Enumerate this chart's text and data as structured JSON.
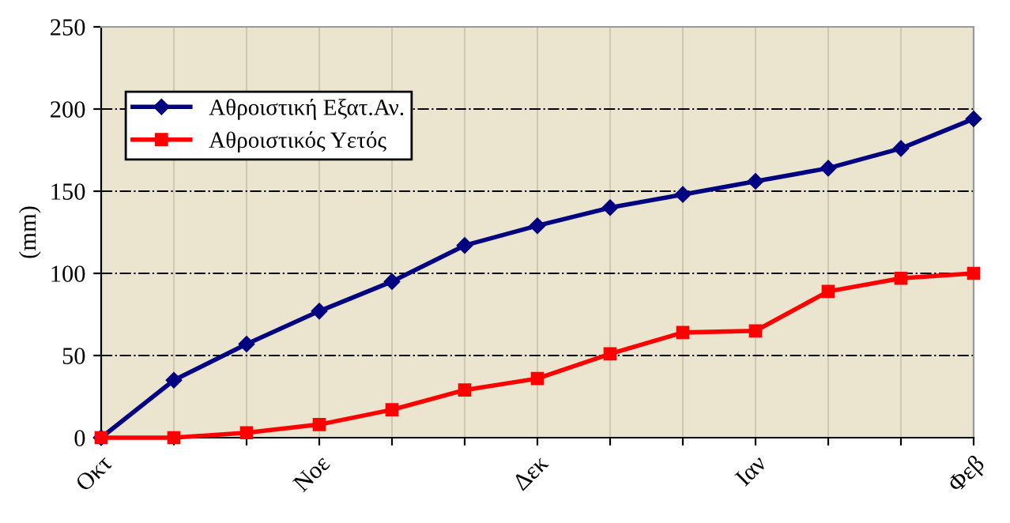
{
  "chart_data": {
    "type": "line",
    "ylabel": "(mm)",
    "categories": [
      "Οκτ",
      null,
      null,
      "Νοε",
      null,
      null,
      "Δεκ",
      null,
      null,
      "Ιαν",
      null,
      null,
      "Φεβ"
    ],
    "series": [
      {
        "name": "Αθροιστική Εξατ.Αν.",
        "color": "#000080",
        "marker": "diamond",
        "values": [
          0,
          35,
          57,
          77,
          95,
          117,
          129,
          140,
          148,
          156,
          164,
          176,
          194
        ]
      },
      {
        "name": "Αθροιστικός Υετός",
        "color": "#ff0000",
        "marker": "square",
        "values": [
          0,
          0,
          3,
          8,
          17,
          29,
          36,
          51,
          64,
          65,
          89,
          97,
          100
        ]
      }
    ],
    "ylim": [
      0,
      250
    ],
    "yticks": [
      0,
      50,
      100,
      150,
      200,
      250
    ],
    "grid": true,
    "legend": "top left"
  }
}
